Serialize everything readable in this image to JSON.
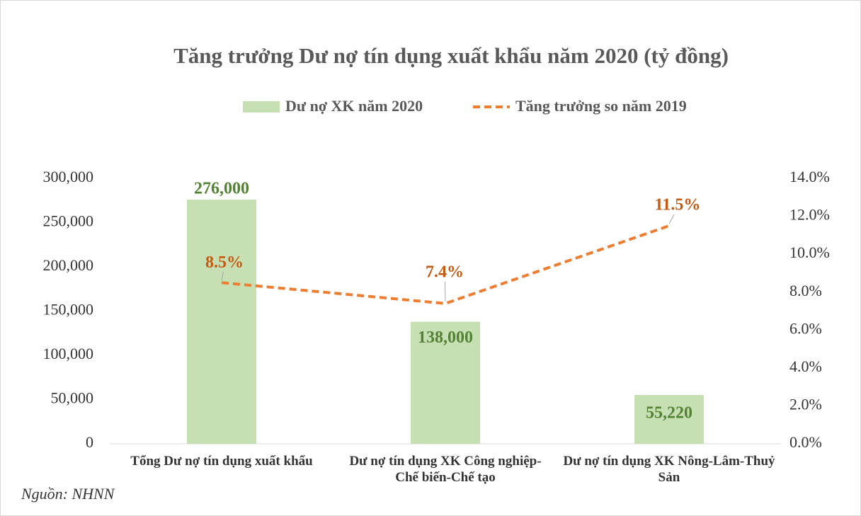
{
  "chart_data": {
    "type": "bar",
    "title": "Tăng trưởng Dư nợ tín dụng xuất khẩu năm 2020 (tỷ đồng)",
    "categories": [
      "Tổng Dư nợ tín dụng xuất khẩu",
      "Dư nợ tín dụng XK Công nghiệp-Chế biến-Chế tạo",
      "Dư nợ tín dụng XK Nông-Lâm-Thuỷ Sản"
    ],
    "series": [
      {
        "name": "Dư nợ XK năm 2020",
        "type": "bar",
        "color": "#c6e0b4",
        "label_color": "#548235",
        "values": [
          276000,
          138000,
          55220
        ],
        "value_labels": [
          "276,000",
          "138,000",
          "55,220"
        ]
      },
      {
        "name": "Tăng trưởng so năm 2019",
        "type": "line",
        "axis": "y2",
        "color": "#ed7d31",
        "label_color": "#c55a11",
        "line_style": "dashed",
        "values": [
          8.5,
          7.4,
          11.5
        ],
        "value_labels": [
          "8.5%",
          "7.4%",
          "11.5%"
        ]
      }
    ],
    "ylim": [
      0,
      300000
    ],
    "yticks": [
      0,
      {
        "value": 50000,
        "label": "50,000"
      },
      {
        "value": 100000,
        "label": "100,000"
      },
      {
        "value": 150000,
        "label": "150,000"
      },
      {
        "value": 200000,
        "label": "200,000"
      },
      {
        "value": 250000,
        "label": "250,000"
      },
      {
        "value": 300000,
        "label": "300,000"
      }
    ],
    "y2lim": [
      0,
      14
    ],
    "y2ticks": [
      {
        "value": 0,
        "label": "0.0%"
      },
      {
        "value": 2,
        "label": "2.0%"
      },
      {
        "value": 4,
        "label": "4.0%"
      },
      {
        "value": 6,
        "label": "6.0%"
      },
      {
        "value": 8,
        "label": "8.0%"
      },
      {
        "value": 10,
        "label": "10.0%"
      },
      {
        "value": 12,
        "label": "12.0%"
      },
      {
        "value": 14,
        "label": "14.0%"
      }
    ],
    "grid": false,
    "legend": "top",
    "source": "Nguồn: NHNN"
  }
}
